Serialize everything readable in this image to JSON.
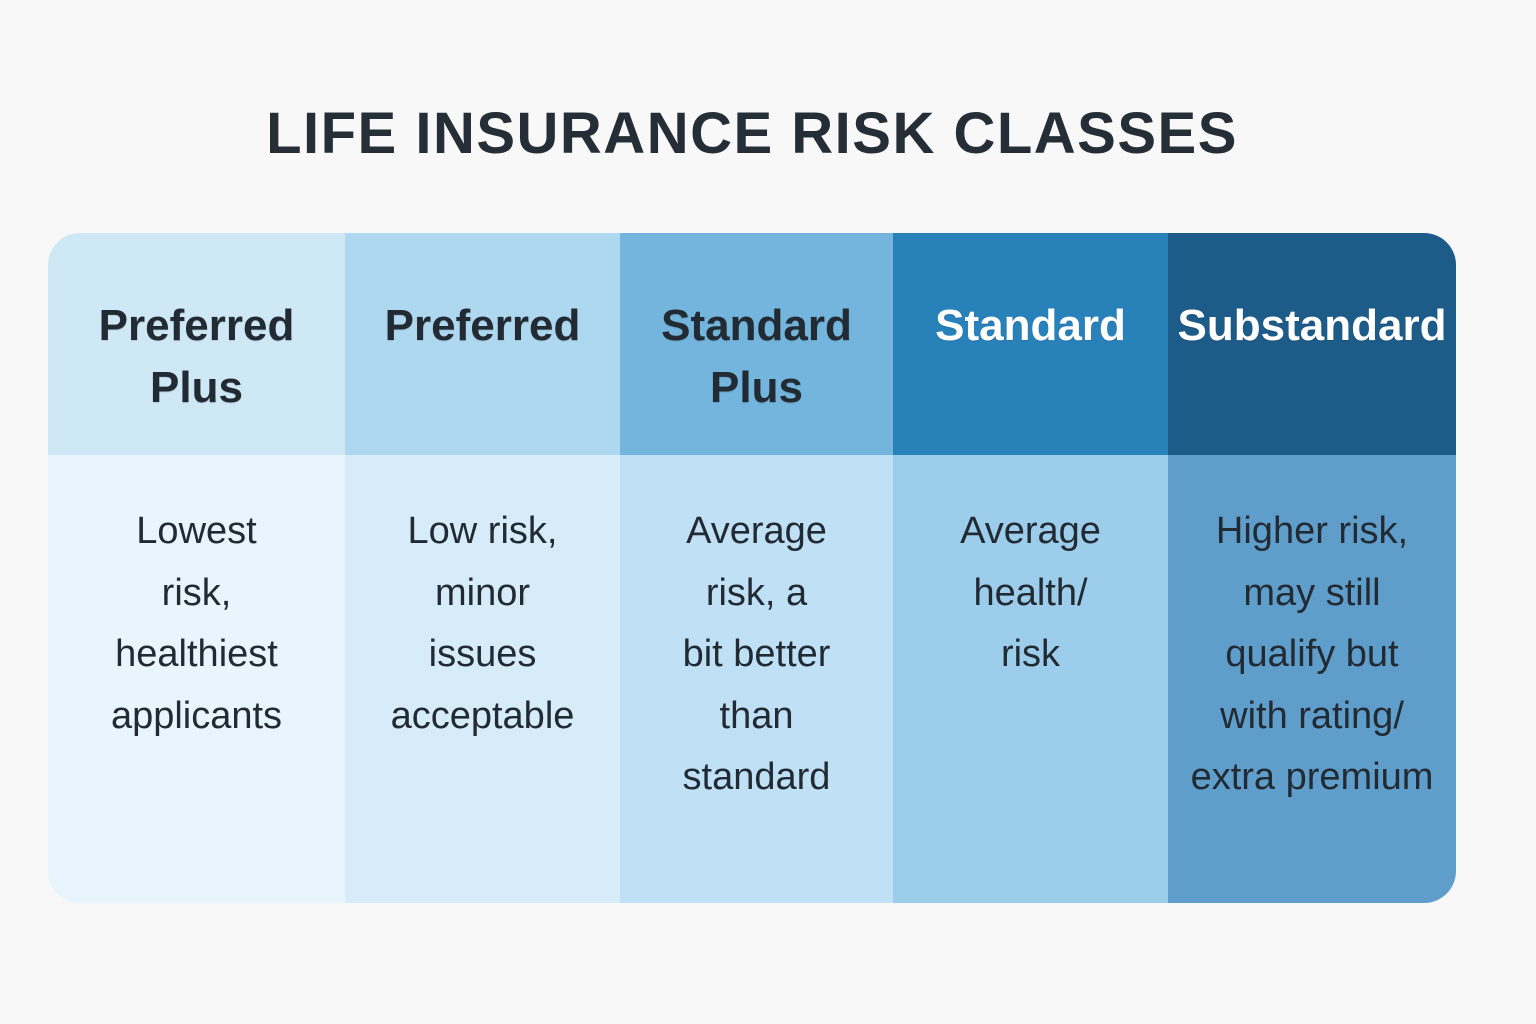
{
  "page": {
    "background": "#f7f8f7",
    "title": "LIFE INSURANCE RISK CLASSES",
    "title_color": "#252e37"
  },
  "table": {
    "columns": [
      {
        "id": "preferred-plus",
        "header": "Preferred\nPlus",
        "body": "Lowest\nrisk,\nhealthiest\napplicants",
        "header_bg": "#cfe8f6",
        "body_bg": "#e9f5fc",
        "header_color": "#222b34",
        "body_color": "#222b34"
      },
      {
        "id": "preferred",
        "header": "Preferred",
        "body": "Low risk,\nminor\nissues\nacceptable",
        "header_bg": "#aed8f0",
        "body_bg": "#d7ecf9",
        "header_color": "#222b34",
        "body_color": "#222b34"
      },
      {
        "id": "standard-plus",
        "header": "Standard\nPlus",
        "body": "Average\nrisk, a\nbit better\nthan\nstandard",
        "header_bg": "#73b5dc",
        "body_bg": "#c0e1f5",
        "header_color": "#222b34",
        "body_color": "#222b34"
      },
      {
        "id": "standard",
        "header": "Standard",
        "body": "Average\nhealth/\nrisk",
        "header_bg": "#2981ba",
        "body_bg": "#9ccdea",
        "header_color": "#ffffff",
        "body_color": "#222b34"
      },
      {
        "id": "substandard",
        "header": "Substandard",
        "body": "Higher risk,\nmay still\nqualify but\nwith rating/\nextra premium",
        "header_bg": "#1d5b88",
        "body_bg": "#5f9ecb",
        "header_color": "#ffffff",
        "body_color": "#222b34"
      }
    ]
  },
  "chart_data": {
    "type": "table",
    "title": "LIFE INSURANCE RISK CLASSES",
    "columns": [
      "Preferred Plus",
      "Preferred",
      "Standard Plus",
      "Standard",
      "Substandard"
    ],
    "rows": [
      [
        "Lowest risk, healthiest applicants",
        "Low risk, minor issues acceptable",
        "Average risk, a bit better than standard",
        "Average health/risk",
        "Higher risk, may still qualify but with rating/extra premium"
      ]
    ],
    "palette": [
      "#cfe8f6",
      "#aed8f0",
      "#73b5dc",
      "#2981ba",
      "#1d5b88"
    ],
    "legend_position": "none"
  }
}
